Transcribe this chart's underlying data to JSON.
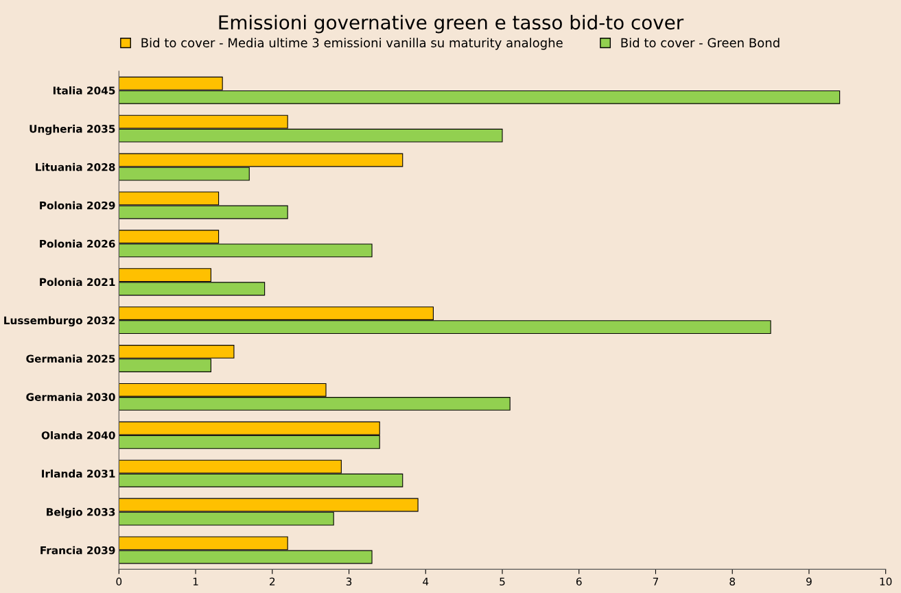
{
  "chart_data": {
    "type": "bar",
    "orientation": "horizontal",
    "title": "Emissioni governative green e tasso bid-to cover",
    "categories": [
      "Italia 2045",
      "Ungheria 2035",
      "Lituania 2028",
      "Polonia 2029",
      "Polonia 2026",
      "Polonia 2021",
      "Lussemburgo 2032",
      "Germania 2025",
      "Germania 2030",
      "Olanda 2040",
      "Irlanda 2031",
      "Belgio 2033",
      "Francia 2039"
    ],
    "series": [
      {
        "name": "Bid to cover - Media ultime 3 emissioni vanilla su maturity analoghe",
        "color": "#ffc000",
        "values": [
          1.35,
          2.2,
          3.7,
          1.3,
          1.3,
          1.2,
          4.1,
          1.5,
          2.7,
          3.4,
          2.9,
          3.9,
          2.2
        ]
      },
      {
        "name": "Bid to cover - Green Bond",
        "color": "#92d050",
        "values": [
          9.4,
          5.0,
          1.7,
          2.2,
          3.3,
          1.9,
          8.5,
          1.2,
          5.1,
          3.4,
          3.7,
          2.8,
          3.3
        ]
      }
    ],
    "xlim": [
      0,
      10
    ],
    "xticks": [
      0,
      1,
      2,
      3,
      4,
      5,
      6,
      7,
      8,
      9,
      10
    ],
    "grid": false,
    "legend": "top"
  }
}
